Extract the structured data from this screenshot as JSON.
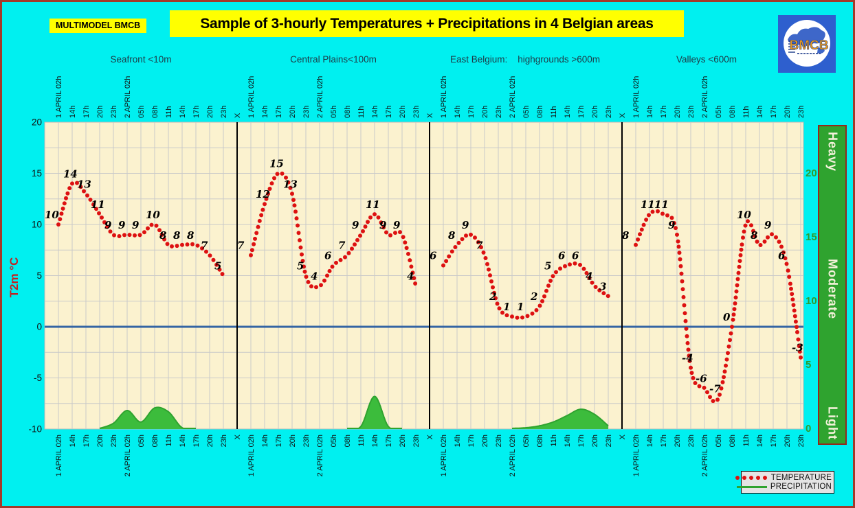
{
  "window": {
    "background": "#00F0F0",
    "border_color": "#A43A2A"
  },
  "header": {
    "model_label": "MULTIMODEL BMCB",
    "title": "Sample of 3-hourly Temperatures + Precipitations in 4 Belgian areas",
    "highlight_color": "#FFFF00",
    "logo_text": "BMCB"
  },
  "legend": {
    "temperature": "TEMPERATURE",
    "precipitation": "PRECIPITATION"
  },
  "chart_data": {
    "type": "line",
    "ylabel": "T2m °C",
    "ylim": [
      -10,
      20
    ],
    "y_ticks": [
      20,
      15,
      10,
      5,
      0,
      -5,
      -10
    ],
    "grid": true,
    "x_ticks": [
      "1 APRIL 02h",
      "14h",
      "17h",
      "20h",
      "23h",
      "2 APRIL 02h",
      "05h",
      "08h",
      "11h",
      "14h",
      "17h",
      "20h",
      "23h"
    ],
    "separator_label": "X",
    "precip_axis": {
      "ylim": [
        0,
        20
      ],
      "ticks": [
        20,
        15,
        10,
        5,
        0
      ],
      "intensity": [
        "Heavy",
        "Moderate",
        "Light"
      ]
    },
    "panels": [
      {
        "title": "Seafront <10m",
        "temperature": [
          10,
          14,
          13,
          11,
          9,
          9,
          9,
          10,
          8,
          8,
          8,
          7,
          5
        ],
        "precipitation": [
          0,
          0,
          0,
          0,
          0.4,
          1.4,
          0.5,
          1.6,
          1.3,
          0.05,
          0,
          0,
          0
        ]
      },
      {
        "title": "Central Plains<100m",
        "temperature": [
          7,
          12,
          15,
          13,
          5,
          4,
          6,
          7,
          9,
          11,
          9,
          9,
          4
        ],
        "precipitation": [
          0,
          0,
          0,
          0,
          0,
          0,
          0,
          0,
          0.15,
          2.5,
          0.15,
          0,
          0
        ]
      },
      {
        "title": "East Belgium:    highgrounds >600m",
        "temperature": [
          6,
          8,
          9,
          7,
          2,
          1,
          1,
          2,
          5,
          6,
          6,
          4,
          3
        ],
        "precipitation": [
          0,
          0,
          0,
          0,
          0,
          0,
          0.05,
          0.2,
          0.5,
          1.0,
          1.5,
          1.1,
          0.2
        ]
      },
      {
        "title": "Valleys <600m",
        "temperature": [
          8,
          11,
          11,
          9,
          -4,
          -6,
          -7,
          0,
          10,
          8,
          9,
          6,
          -3
        ],
        "precipitation": [
          0,
          0,
          0,
          0,
          0,
          0,
          0,
          0,
          0,
          0,
          0,
          0,
          0
        ]
      }
    ],
    "colors": {
      "temperature": "#DD1111",
      "precipitation_fill": "#3CBC3C",
      "precipitation_edge": "#2FA32F",
      "zero_line": "#3465A4",
      "plot_bg": "#FBF2CF",
      "grid": "#C9C9C9",
      "axis_green": "#2E9B2E",
      "y_label_red": "#C22222"
    }
  }
}
